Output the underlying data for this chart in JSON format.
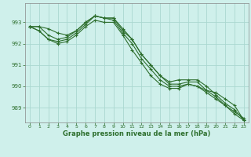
{
  "title": "Graphe pression niveau de la mer (hPa)",
  "background_color": "#cff0eb",
  "grid_color": "#aad8d0",
  "line_color": "#2d6e2d",
  "x_ticks": [
    0,
    1,
    2,
    3,
    4,
    5,
    6,
    7,
    8,
    9,
    10,
    11,
    12,
    13,
    14,
    15,
    16,
    17,
    18,
    19,
    20,
    21,
    22,
    23
  ],
  "y_ticks": [
    989,
    990,
    991,
    992,
    993
  ],
  "ylim": [
    988.3,
    993.9
  ],
  "xlim": [
    -0.5,
    23.5
  ],
  "series": [
    [
      992.8,
      992.8,
      992.7,
      992.5,
      992.4,
      992.6,
      993.0,
      993.3,
      993.2,
      993.2,
      992.6,
      992.2,
      991.5,
      991.0,
      990.5,
      990.1,
      990.1,
      990.2,
      990.2,
      989.8,
      989.5,
      989.1,
      988.8,
      988.5
    ],
    [
      992.8,
      992.6,
      992.2,
      992.1,
      992.2,
      992.5,
      992.9,
      993.3,
      993.2,
      993.1,
      992.5,
      992.0,
      991.3,
      990.8,
      990.3,
      990.0,
      990.0,
      990.1,
      990.0,
      989.7,
      989.4,
      989.1,
      988.7,
      988.4
    ],
    [
      992.8,
      992.6,
      992.2,
      992.0,
      992.1,
      992.4,
      992.8,
      993.1,
      993.0,
      993.0,
      992.4,
      991.7,
      991.1,
      990.5,
      990.1,
      989.9,
      989.9,
      990.1,
      990.0,
      989.8,
      989.7,
      989.4,
      989.1,
      988.4
    ],
    [
      992.8,
      992.8,
      992.4,
      992.2,
      992.3,
      992.6,
      993.0,
      993.3,
      993.2,
      993.2,
      992.7,
      992.2,
      991.5,
      991.0,
      990.5,
      990.2,
      990.3,
      990.3,
      990.3,
      990.0,
      989.6,
      989.2,
      988.9,
      988.4
    ]
  ]
}
